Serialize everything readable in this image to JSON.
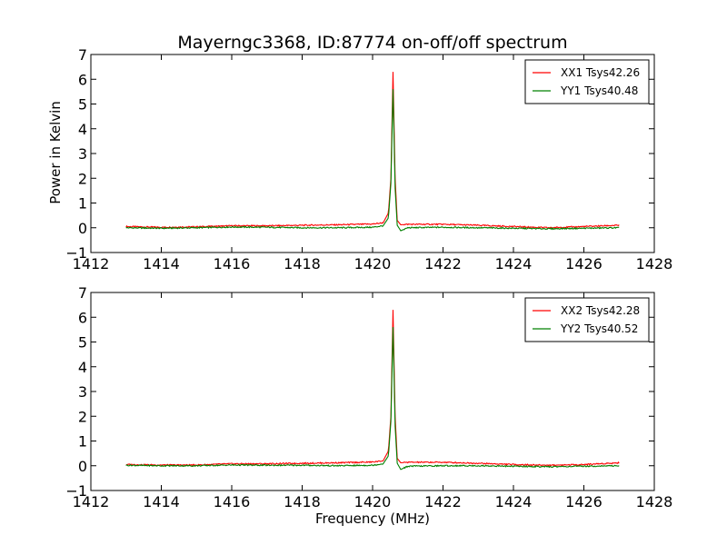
{
  "figure": {
    "title": "Mayerngc3368, ID:87774 on-off/off spectrum",
    "ylabel": "Power in Kelvin",
    "xlabel": "Frequency (MHz)"
  },
  "chart_data": [
    {
      "type": "line",
      "title": "Mayerngc3368, ID:87774 on-off/off spectrum",
      "xlabel": "",
      "ylabel": "Power in Kelvin",
      "xlim": [
        1412,
        1428
      ],
      "ylim": [
        -1,
        7
      ],
      "xticks": [
        "1412",
        "1414",
        "1416",
        "1418",
        "1420",
        "1422",
        "1424",
        "1426",
        "1428"
      ],
      "yticks": [
        "−1",
        "0",
        "1",
        "2",
        "3",
        "4",
        "5",
        "6",
        "7"
      ],
      "grid": false,
      "legend_position": "top-right",
      "series": [
        {
          "name": "XX1 Tsys42.26",
          "color": "#ff0000",
          "x": [
            1413.0,
            1414.0,
            1415.0,
            1416.0,
            1417.0,
            1418.0,
            1419.0,
            1420.0,
            1420.3,
            1420.45,
            1420.52,
            1420.58,
            1420.64,
            1420.7,
            1420.8,
            1421.0,
            1422.0,
            1423.0,
            1424.0,
            1425.0,
            1426.0,
            1427.0
          ],
          "y": [
            0.05,
            0.02,
            0.04,
            0.08,
            0.08,
            0.1,
            0.12,
            0.15,
            0.2,
            0.6,
            2.0,
            6.3,
            2.0,
            0.3,
            0.12,
            0.14,
            0.14,
            0.1,
            0.05,
            0.0,
            0.05,
            0.1
          ]
        },
        {
          "name": "YY1 Tsys40.48",
          "color": "#008000",
          "x": [
            1413.0,
            1414.0,
            1415.0,
            1416.0,
            1417.0,
            1418.0,
            1419.0,
            1420.0,
            1420.3,
            1420.45,
            1420.52,
            1420.58,
            1420.64,
            1420.7,
            1420.8,
            1421.0,
            1422.0,
            1423.0,
            1424.0,
            1425.0,
            1426.0,
            1427.0
          ],
          "y": [
            0.0,
            -0.02,
            0.0,
            0.03,
            0.02,
            0.0,
            0.0,
            0.02,
            0.08,
            0.4,
            1.8,
            5.6,
            1.6,
            0.1,
            -0.12,
            0.0,
            0.02,
            0.0,
            -0.02,
            -0.04,
            -0.02,
            0.0
          ]
        }
      ]
    },
    {
      "type": "line",
      "title": "",
      "xlabel": "Frequency (MHz)",
      "ylabel": "",
      "xlim": [
        1412,
        1428
      ],
      "ylim": [
        -1,
        7
      ],
      "xticks": [
        "1412",
        "1414",
        "1416",
        "1418",
        "1420",
        "1422",
        "1424",
        "1426",
        "1428"
      ],
      "yticks": [
        "−1",
        "0",
        "1",
        "2",
        "3",
        "4",
        "5",
        "6",
        "7"
      ],
      "grid": false,
      "legend_position": "top-right",
      "series": [
        {
          "name": "XX2 Tsys42.28",
          "color": "#ff0000",
          "x": [
            1413.0,
            1414.0,
            1415.0,
            1416.0,
            1417.0,
            1418.0,
            1419.0,
            1420.0,
            1420.3,
            1420.45,
            1420.52,
            1420.58,
            1420.64,
            1420.7,
            1420.8,
            1421.0,
            1422.0,
            1423.0,
            1424.0,
            1425.0,
            1426.0,
            1427.0
          ],
          "y": [
            0.05,
            0.03,
            0.03,
            0.08,
            0.08,
            0.1,
            0.12,
            0.15,
            0.2,
            0.6,
            2.0,
            6.3,
            2.0,
            0.3,
            0.12,
            0.14,
            0.14,
            0.1,
            0.05,
            0.02,
            0.05,
            0.12
          ]
        },
        {
          "name": "YY2 Tsys40.52",
          "color": "#008000",
          "x": [
            1413.0,
            1414.0,
            1415.0,
            1416.0,
            1417.0,
            1418.0,
            1419.0,
            1420.0,
            1420.3,
            1420.45,
            1420.52,
            1420.58,
            1420.64,
            1420.7,
            1420.8,
            1421.0,
            1422.0,
            1423.0,
            1424.0,
            1425.0,
            1426.0,
            1427.0
          ],
          "y": [
            0.02,
            0.0,
            0.0,
            0.03,
            0.02,
            0.02,
            0.0,
            0.02,
            0.08,
            0.4,
            1.8,
            5.6,
            1.6,
            0.1,
            -0.15,
            -0.02,
            0.0,
            0.0,
            -0.02,
            -0.04,
            -0.02,
            0.0
          ]
        }
      ]
    }
  ]
}
